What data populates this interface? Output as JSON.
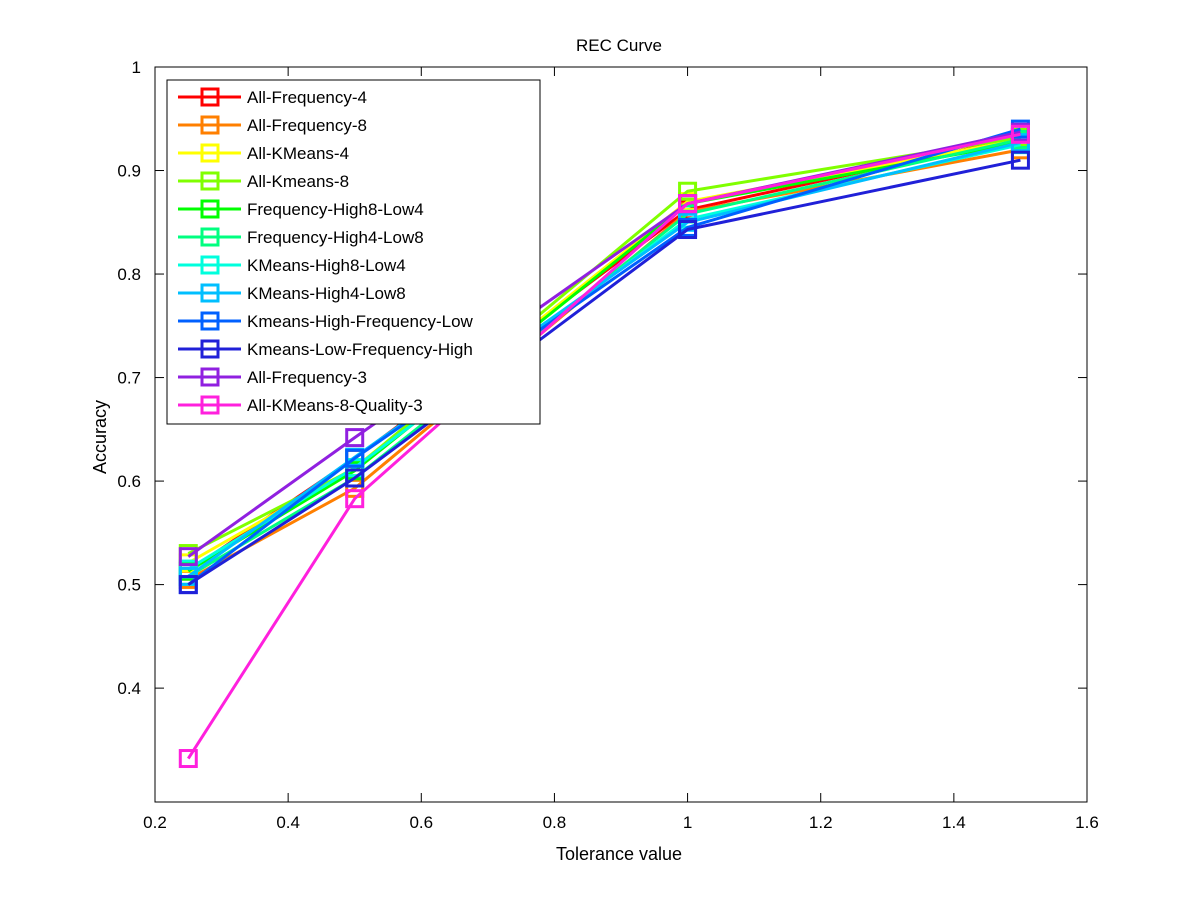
{
  "chart_data": {
    "type": "line",
    "title": "REC Curve",
    "xlabel": "Tolerance value",
    "ylabel": "Accuracy",
    "xlim": [
      0.2,
      1.6
    ],
    "ylim": [
      0.29,
      1.0
    ],
    "xticks": [
      0.2,
      0.4,
      0.6,
      0.8,
      1.0,
      1.2,
      1.4,
      1.6
    ],
    "xtick_labels": [
      "0.2",
      "0.4",
      "0.6",
      "0.8",
      "1",
      "1.2",
      "1.4",
      "1.6"
    ],
    "yticks": [
      0.4,
      0.5,
      0.6,
      0.7,
      0.8,
      0.9,
      1.0
    ],
    "ytick_labels": [
      "0.4",
      "0.5",
      "0.6",
      "0.7",
      "0.8",
      "0.9",
      "1"
    ],
    "grid": false,
    "legend_position": "top-left",
    "marker": "square",
    "x": [
      0.25,
      0.5,
      1.0,
      1.5
    ],
    "series": [
      {
        "name": "All-Frequency-4",
        "color": "#ff0000",
        "values": [
          0.513,
          0.622,
          0.862,
          0.932
        ]
      },
      {
        "name": "All-Frequency-8",
        "color": "#ff7f00",
        "values": [
          0.505,
          0.593,
          0.86,
          0.92
        ]
      },
      {
        "name": "All-KMeans-4",
        "color": "#ffff00",
        "values": [
          0.521,
          0.613,
          0.87,
          0.93
        ]
      },
      {
        "name": "All-Kmeans-8",
        "color": "#80ff00",
        "values": [
          0.53,
          0.612,
          0.88,
          0.932
        ]
      },
      {
        "name": "Frequency-High8-Low4",
        "color": "#00ff00",
        "values": [
          0.513,
          0.61,
          0.868,
          0.927
        ]
      },
      {
        "name": "Frequency-High4-Low8",
        "color": "#00ff80",
        "values": [
          0.508,
          0.603,
          0.858,
          0.93
        ]
      },
      {
        "name": "KMeans-High8-Low4",
        "color": "#00ffdd",
        "values": [
          0.515,
          0.613,
          0.853,
          0.925
        ]
      },
      {
        "name": "KMeans-High4-Low8",
        "color": "#00bfff",
        "values": [
          0.508,
          0.623,
          0.85,
          0.927
        ]
      },
      {
        "name": "Kmeans-High-Frequency-Low",
        "color": "#0060ff",
        "values": [
          0.5,
          0.622,
          0.845,
          0.94
        ]
      },
      {
        "name": "Kmeans-Low-Frequency-High",
        "color": "#2020d8",
        "values": [
          0.5,
          0.603,
          0.843,
          0.91
        ]
      },
      {
        "name": "All-Frequency-3",
        "color": "#9020e0",
        "values": [
          0.527,
          0.642,
          0.868,
          0.937
        ]
      },
      {
        "name": "All-KMeans-8-Quality-3",
        "color": "#ff20dd",
        "values": [
          0.332,
          0.583,
          0.868,
          0.935
        ]
      }
    ]
  }
}
